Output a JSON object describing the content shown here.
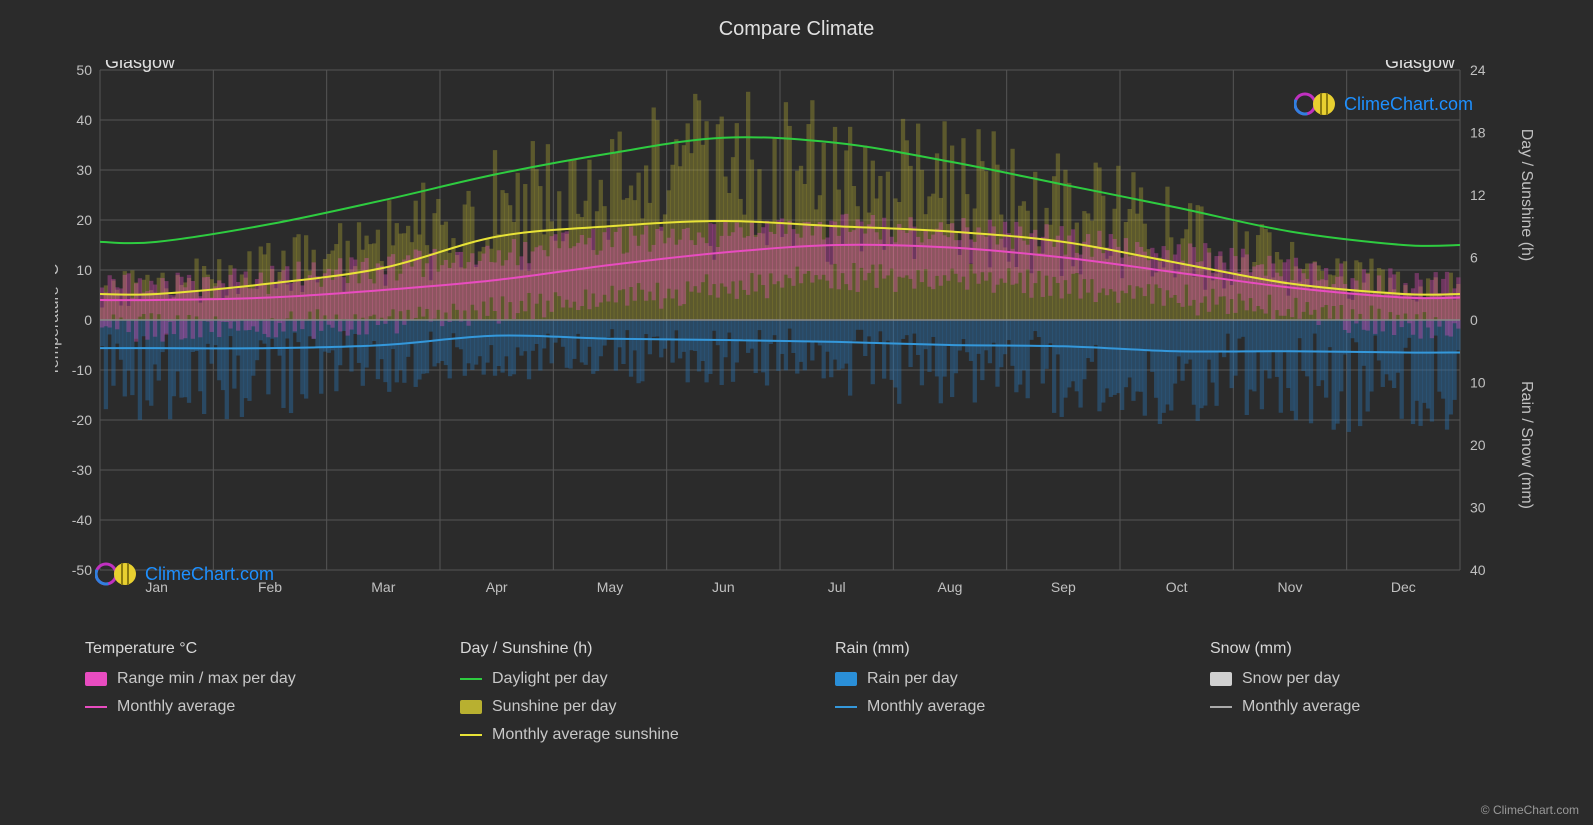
{
  "title": "Compare Climate",
  "city_left": "Glasgow",
  "city_right": "Glasgow",
  "watermark_text": "ClimeChart.com",
  "copyright": "© ClimeChart.com",
  "background_color": "#2b2b2b",
  "grid_color": "#555555",
  "text_color": "#c0c0c0",
  "months": [
    "Jan",
    "Feb",
    "Mar",
    "Apr",
    "May",
    "Jun",
    "Jul",
    "Aug",
    "Sep",
    "Oct",
    "Nov",
    "Dec"
  ],
  "left_axis": {
    "title": "Temperature °C",
    "min": -50,
    "max": 50,
    "step": 10
  },
  "right_axis_top": {
    "title": "Day / Sunshine (h)",
    "min": 0,
    "max": 24,
    "step": 6
  },
  "right_axis_bottom": {
    "title": "Rain / Snow (mm)",
    "min": 0,
    "max": 40,
    "step": 10
  },
  "series": {
    "daylight": {
      "color": "#2ecc40",
      "width": 2,
      "values": [
        7.5,
        9.2,
        11.5,
        14.0,
        16.0,
        17.5,
        17.0,
        15.2,
        13.0,
        10.8,
        8.5,
        7.2
      ]
    },
    "sunshine_avg": {
      "color": "#e8e337",
      "width": 2,
      "values": [
        2.5,
        3.5,
        5.0,
        8.0,
        9.0,
        9.5,
        9.0,
        8.5,
        7.5,
        5.5,
        3.5,
        2.5
      ]
    },
    "temp_avg": {
      "color": "#e84cc0",
      "width": 2,
      "values": [
        4.0,
        4.5,
        6.0,
        8.0,
        11.0,
        13.5,
        15.0,
        14.5,
        12.5,
        9.5,
        6.5,
        4.5
      ]
    },
    "rain_avg": {
      "color": "#3498db",
      "width": 2,
      "values": [
        4.5,
        4.5,
        4.0,
        2.5,
        3.0,
        3.2,
        3.5,
        4.0,
        4.2,
        5.0,
        5.0,
        5.2
      ]
    },
    "temp_range": {
      "color": "#e84cc0",
      "opacity": 0.35,
      "lo": [
        0,
        0,
        1,
        3,
        5,
        8,
        10,
        10,
        8,
        5,
        2,
        0
      ],
      "hi": [
        8,
        9,
        11,
        14,
        17,
        19,
        20,
        19,
        17,
        14,
        10,
        8
      ]
    },
    "sunshine_bars": {
      "color": "#b8b030",
      "opacity": 0.35,
      "values": [
        3,
        4,
        6,
        10,
        12,
        14,
        13,
        12,
        10,
        7,
        4,
        3
      ]
    },
    "rain_bars": {
      "color": "#2a6fa8",
      "opacity": 0.45,
      "values": [
        9,
        9,
        8,
        5,
        6,
        6,
        7,
        8,
        9,
        10,
        10,
        11
      ]
    }
  },
  "legend": {
    "temp": {
      "heading": "Temperature °C",
      "items": [
        {
          "swatch": "block",
          "color": "#e84cc0",
          "label": "Range min / max per day"
        },
        {
          "swatch": "line",
          "color": "#e84cc0",
          "label": "Monthly average"
        }
      ]
    },
    "day": {
      "heading": "Day / Sunshine (h)",
      "items": [
        {
          "swatch": "line",
          "color": "#2ecc40",
          "label": "Daylight per day"
        },
        {
          "swatch": "block",
          "color": "#b8b030",
          "label": "Sunshine per day"
        },
        {
          "swatch": "line",
          "color": "#e8e337",
          "label": "Monthly average sunshine"
        }
      ]
    },
    "rain": {
      "heading": "Rain (mm)",
      "items": [
        {
          "swatch": "block",
          "color": "#2a8fd8",
          "label": "Rain per day"
        },
        {
          "swatch": "line",
          "color": "#3498db",
          "label": "Monthly average"
        }
      ]
    },
    "snow": {
      "heading": "Snow (mm)",
      "items": [
        {
          "swatch": "block",
          "color": "#d0d0d0",
          "label": "Snow per day"
        },
        {
          "swatch": "line",
          "color": "#aaaaaa",
          "label": "Monthly average"
        }
      ]
    }
  }
}
